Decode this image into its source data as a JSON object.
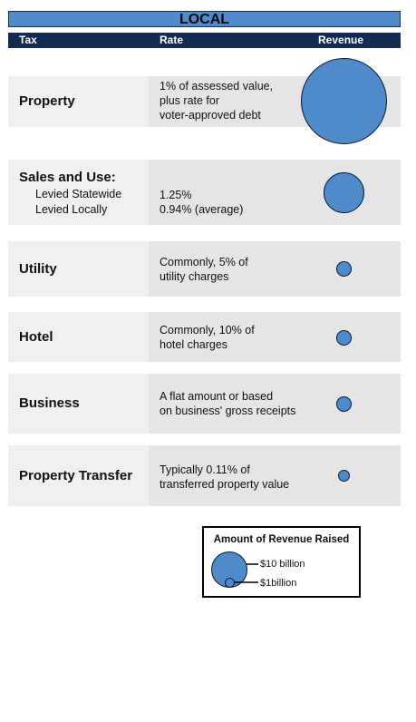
{
  "title": "LOCAL",
  "columns": {
    "tax": "Tax",
    "rate": "Rate",
    "revenue": "Revenue"
  },
  "rows": [
    {
      "name": "Property",
      "rate": "1% of assessed value,\nplus rate for\nvoter-approved debt"
    },
    {
      "name": "Sales and Use:",
      "sub": [
        "Levied Statewide",
        "Levied Locally"
      ],
      "rate": "1.25%\n0.94% (average)"
    },
    {
      "name": "Utility",
      "rate": "Commonly, 5% of\nutility charges"
    },
    {
      "name": "Hotel",
      "rate": "Commonly, 10% of\nhotel charges"
    },
    {
      "name": "Business",
      "rate": "A flat amount or based\non business' gross receipts"
    },
    {
      "name": "Property Transfer",
      "rate": "Typically 0.11% of\ntransferred property value"
    }
  ],
  "legend": {
    "title": "Amount of Revenue Raised",
    "large": "$10 billion",
    "small": "$1billion"
  },
  "colors": {
    "bubble": "#4f8bcb",
    "header": "#132a52",
    "banner": "#4f8bcb"
  }
}
